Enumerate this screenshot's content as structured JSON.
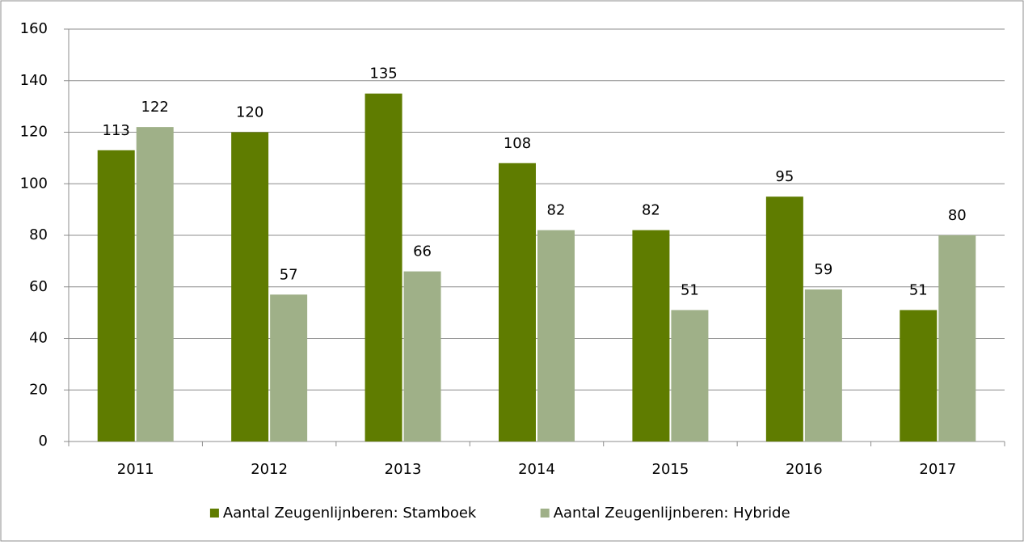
{
  "chart_data": {
    "type": "bar",
    "categories": [
      "2011",
      "2012",
      "2013",
      "2014",
      "2015",
      "2016",
      "2017"
    ],
    "series": [
      {
        "name": "Aantal Zeugenlijnberen: Stamboek",
        "color": "#5f7c00",
        "values": [
          113,
          120,
          135,
          108,
          82,
          95,
          51
        ]
      },
      {
        "name": "Aantal Zeugenlijnberen: Hybride",
        "color": "#9fb088",
        "values": [
          122,
          57,
          66,
          82,
          51,
          59,
          80
        ]
      }
    ],
    "ylim": [
      0,
      160
    ],
    "yticks": [
      0,
      20,
      40,
      60,
      80,
      100,
      120,
      140,
      160
    ],
    "grid": true,
    "legend": "bottom"
  }
}
